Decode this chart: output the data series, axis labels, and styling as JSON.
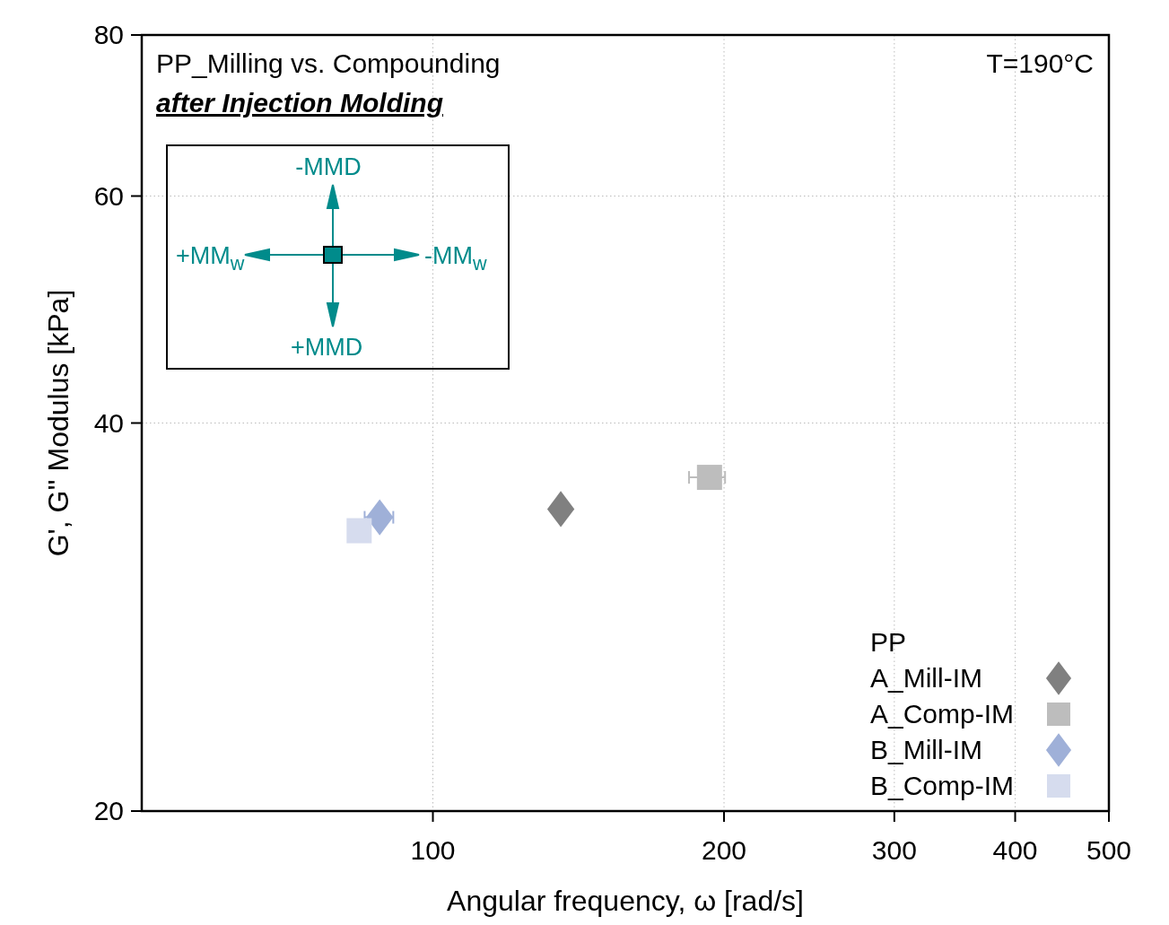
{
  "chart_data": {
    "type": "scatter",
    "xlabel": "Angular frequency, ω [rad/s]",
    "ylabel": "G', G'' Modulus [kPa]",
    "log": "xy",
    "xlim": [
      50,
      500
    ],
    "xticks": [
      100,
      200,
      300,
      400,
      500
    ],
    "ylim": [
      20,
      80
    ],
    "yticks": [
      20,
      40,
      60,
      80
    ],
    "grid": true,
    "legend": "bottom right",
    "legend_title": "PP",
    "annotations": [
      "PP_Milling vs. Compounding",
      "after Injection Molding",
      "T=190°C",
      "-MMD",
      "+MM$_{w}$",
      "-MM$_{w}$",
      "+MMD"
    ],
    "series": [
      {
        "name": "A_Mill-IM",
        "color": "#808080",
        "marker": "diamond",
        "x": [
          135.6
        ],
        "values": [
          34.3
        ],
        "xerrors": [
          null
        ]
      },
      {
        "name": "A_Comp-IM",
        "color": "#bdbdbd",
        "marker": "square",
        "x": [
          193.2
        ],
        "values": [
          36.3
        ],
        "xerrors": [
          [
            184,
            200.5
          ]
        ]
      },
      {
        "name": "B_Mill-IM",
        "color": "#9fb0d8",
        "marker": "diamond",
        "x": [
          88.1
        ],
        "values": [
          33.8
        ],
        "xerrors": [
          [
            85,
            91
          ]
        ]
      },
      {
        "name": "B_Comp-IM",
        "color": "#d6dcee",
        "marker": "square",
        "x": [
          83.9
        ],
        "values": [
          33.0
        ],
        "xerrors": [
          null
        ]
      }
    ]
  }
}
